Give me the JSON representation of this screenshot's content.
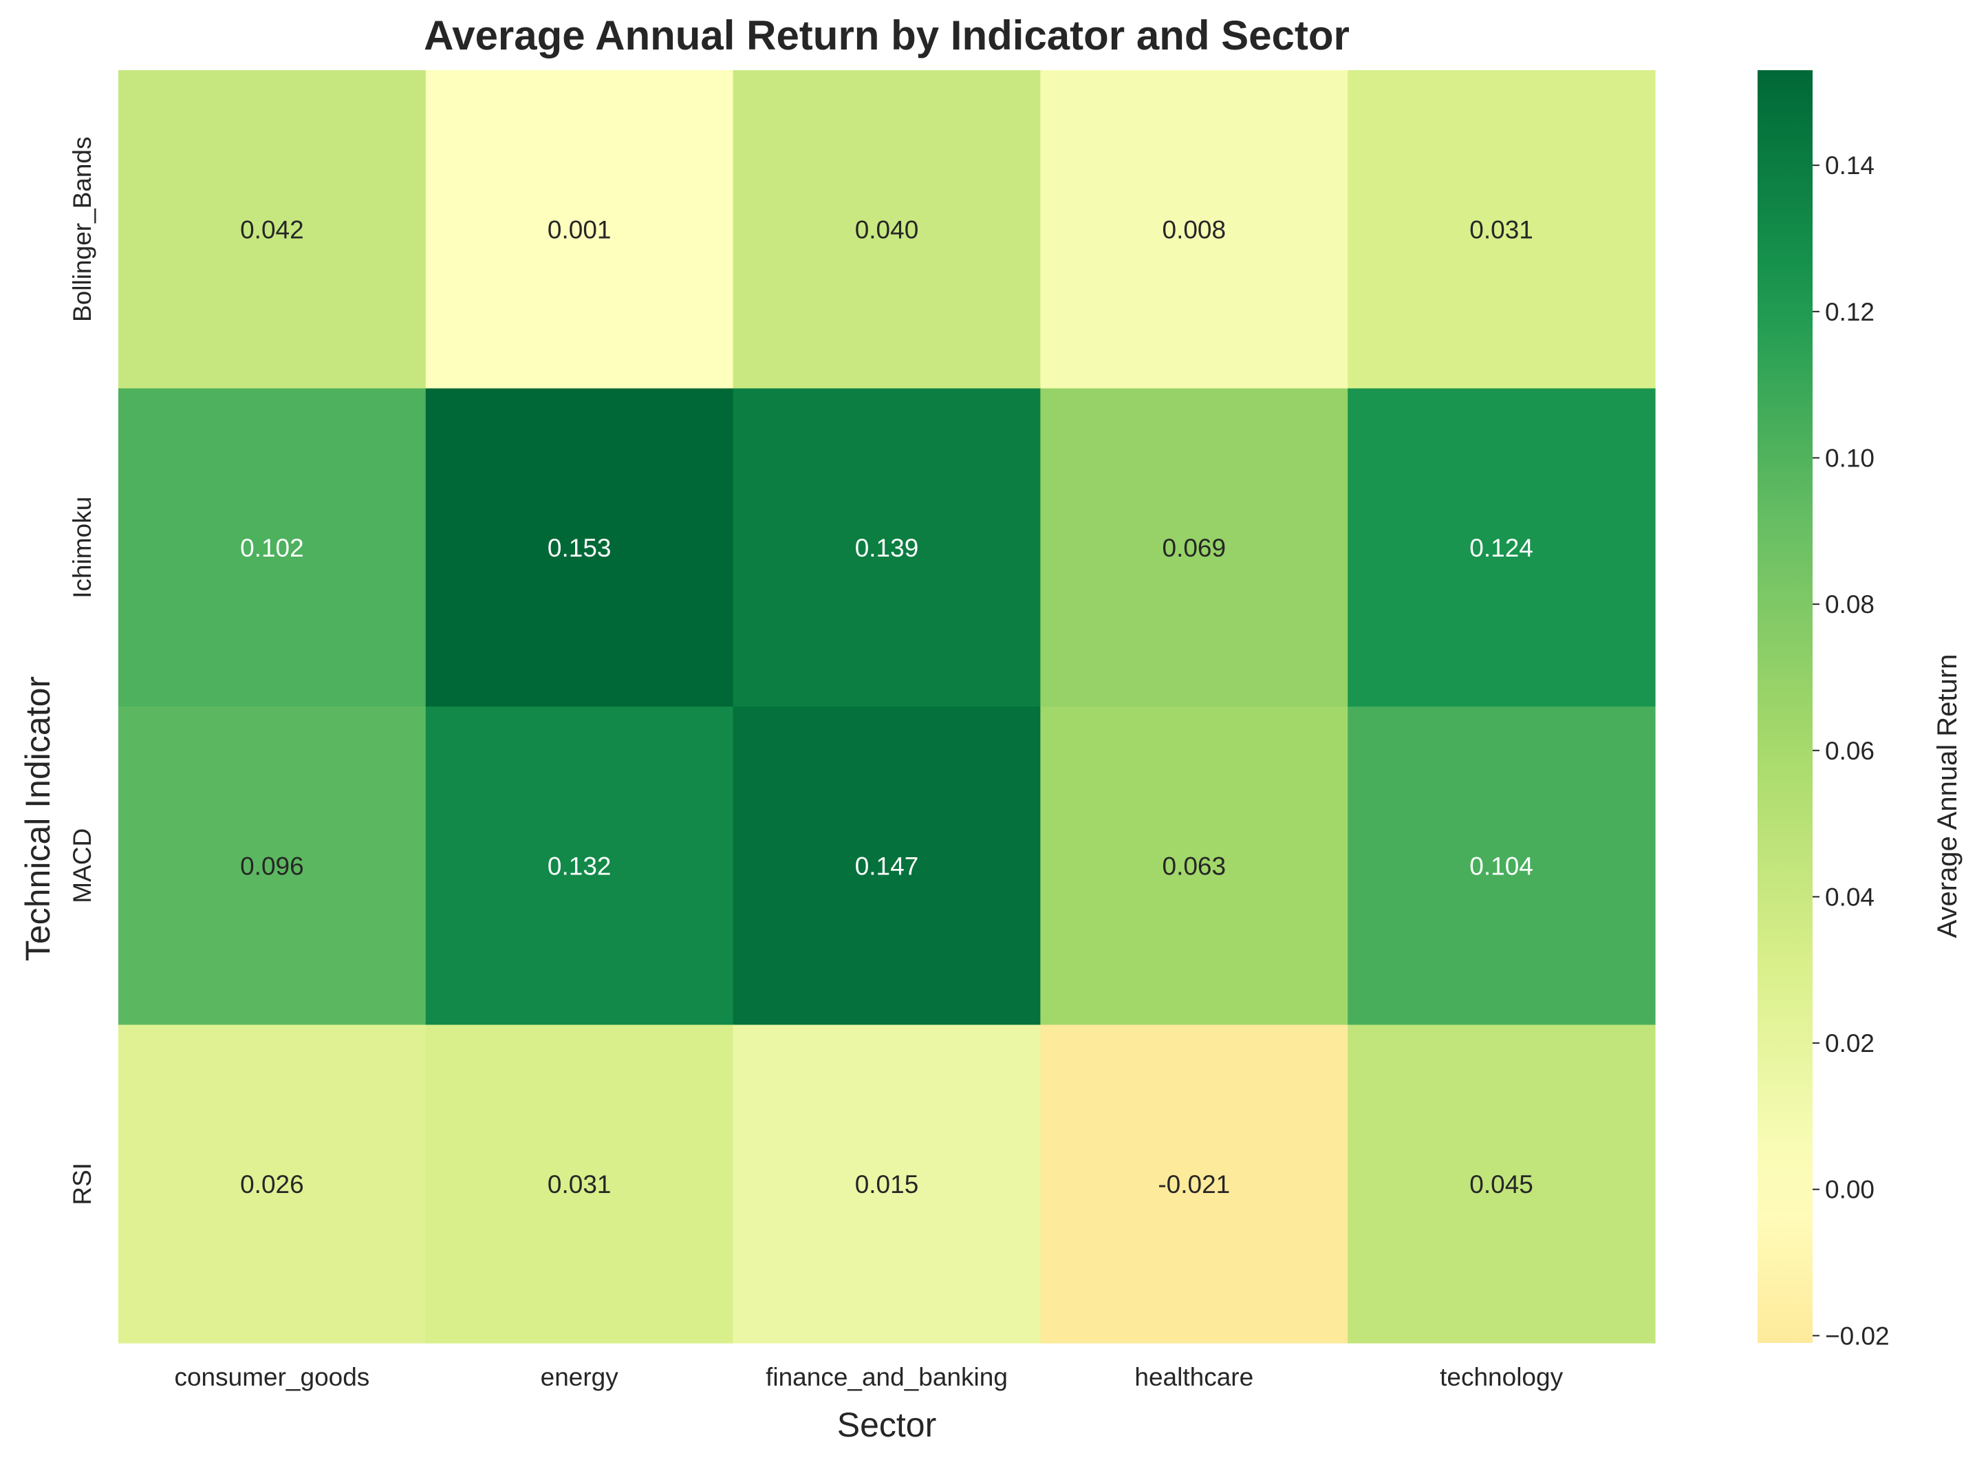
{
  "chart_data": {
    "type": "heatmap",
    "title": "Average Annual Return by Indicator and Sector",
    "xlabel": "Sector",
    "ylabel": "Technical Indicator",
    "x_categories": [
      "consumer_goods",
      "energy",
      "finance_and_banking",
      "healthcare",
      "technology"
    ],
    "y_categories": [
      "Bollinger_Bands",
      "Ichimoku",
      "MACD",
      "RSI"
    ],
    "values": [
      [
        0.042,
        0.001,
        0.04,
        0.008,
        0.031
      ],
      [
        0.102,
        0.153,
        0.139,
        0.069,
        0.124
      ],
      [
        0.096,
        0.132,
        0.147,
        0.063,
        0.104
      ],
      [
        0.026,
        0.031,
        0.015,
        -0.021,
        0.045
      ]
    ],
    "value_labels": [
      [
        "0.042",
        "0.001",
        "0.040",
        "0.008",
        "0.031"
      ],
      [
        "0.102",
        "0.153",
        "0.139",
        "0.069",
        "0.124"
      ],
      [
        "0.096",
        "0.132",
        "0.147",
        "0.063",
        "0.104"
      ],
      [
        "0.026",
        "0.031",
        "0.015",
        "-0.021",
        "0.045"
      ]
    ],
    "colorbar": {
      "label": "Average Annual Return",
      "vmin": -0.021,
      "vmax": 0.153,
      "ticks": [
        -0.02,
        0.0,
        0.02,
        0.04,
        0.06,
        0.08,
        0.1,
        0.12,
        0.14
      ],
      "tick_labels": [
        "−0.02",
        "0.00",
        "0.02",
        "0.04",
        "0.06",
        "0.08",
        "0.10",
        "0.12",
        "0.14"
      ],
      "colormap": "RdYlGn (centered at 0)"
    },
    "grid": false
  }
}
